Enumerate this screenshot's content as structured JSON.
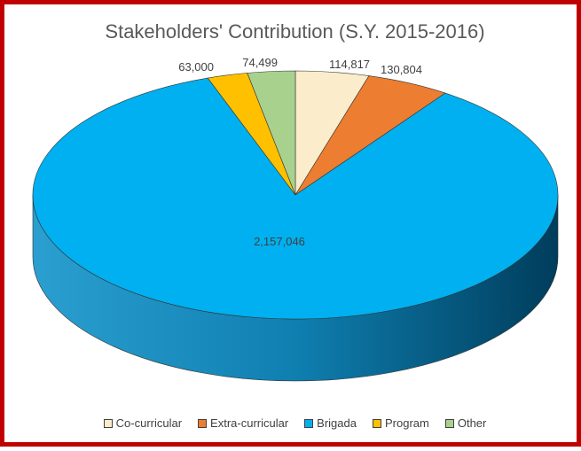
{
  "chart_data": {
    "type": "pie",
    "title": "Stakeholders' Contribution (S.Y. 2015-2016)",
    "categories": [
      "Co-curricular",
      "Extra-curricular",
      "Brigada",
      "Program",
      "Other"
    ],
    "values": [
      114817,
      130804,
      2157046,
      63000,
      74499
    ],
    "value_labels": [
      "114,817",
      "130,804",
      "2,157,046",
      "63,000",
      "74,499"
    ],
    "colors": [
      "#fbeccb",
      "#ed7d31",
      "#00b0f0",
      "#ffc000",
      "#a9d18e"
    ],
    "side_colors": [
      "#c9bd9f",
      "#b55f24",
      "#0088bb",
      "#c79600",
      "#7fa56a"
    ],
    "legend_position": "bottom",
    "style": "3d"
  }
}
